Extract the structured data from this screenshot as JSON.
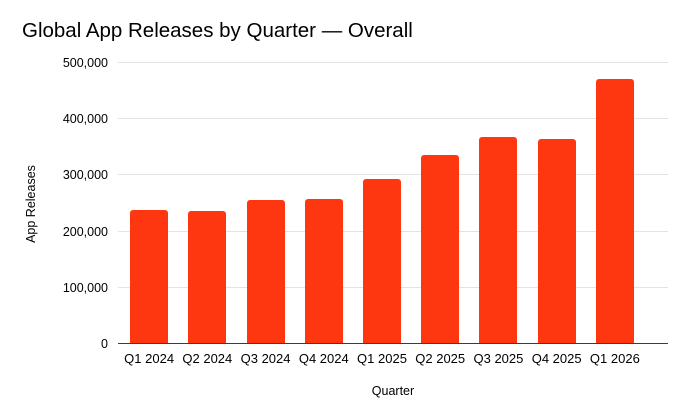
{
  "chart_data": {
    "type": "bar",
    "title": "Global App Releases by Quarter — Overall",
    "xlabel": "Quarter",
    "ylabel": "App Releases",
    "categories": [
      "Q1 2024",
      "Q2 2024",
      "Q3 2024",
      "Q4 2024",
      "Q1 2025",
      "Q2 2025",
      "Q3 2025",
      "Q4 2025",
      "Q1 2026"
    ],
    "values": [
      238000,
      236000,
      256000,
      258000,
      294000,
      337000,
      368000,
      364000,
      472000
    ],
    "ylim": [
      0,
      500000
    ],
    "yticks": [
      0,
      100000,
      200000,
      300000,
      400000,
      500000
    ],
    "ytick_labels": [
      "0",
      "100,000",
      "200,000",
      "300,000",
      "400,000",
      "500,000"
    ],
    "grid": "horizontal",
    "legend": "none",
    "colors": {
      "bar": "#FF3710",
      "gridline": "#E3E3E3",
      "zero_axis_line": "#3D3D3D",
      "text": "#000000",
      "background": "#FFFFFF"
    }
  }
}
